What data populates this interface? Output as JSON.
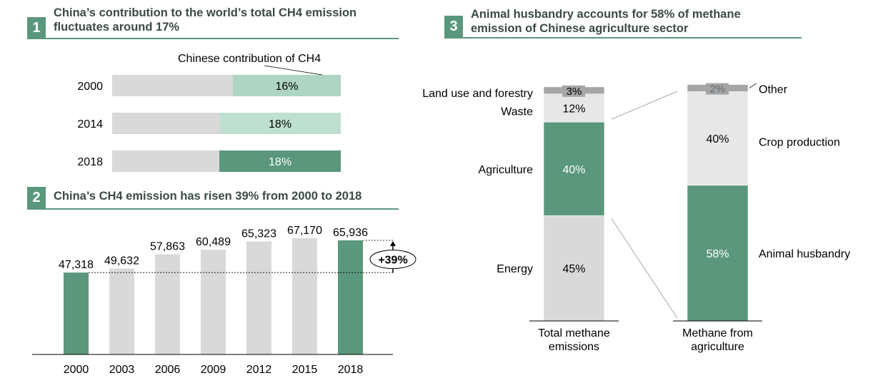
{
  "panels": [
    {
      "number": "1",
      "title_line1": "China’s contribution to the world’s total CH4 emission",
      "title_line2": "fluctuates around 17%"
    },
    {
      "number": "2",
      "title_line1": "China’s CH4 emission has risen 39% from 2000 to 2018"
    },
    {
      "number": "3",
      "title_line1": "Animal husbandry accounts for 58% of methane",
      "title_line2": "emission of Chinese agriculture sector"
    }
  ],
  "colors": {
    "accent": "#5a977c",
    "light_accent": "#aed5c3",
    "mid_accent": "#bfe0d1",
    "gray_bar": "#d9d9d9",
    "light_gray": "#e7e7e7",
    "dark_gray": "#a6a6a6",
    "title_text": "#3b4a45"
  },
  "chart_data": [
    {
      "type": "bar",
      "orientation": "horizontal",
      "legend_label": "Chinese contribution of CH4",
      "categories": [
        "2000",
        "2014",
        "2018"
      ],
      "values": [
        16,
        18,
        18
      ],
      "labels": [
        "16%",
        "18%",
        "18%"
      ],
      "value_unit": "%",
      "xlim": [
        0,
        100
      ]
    },
    {
      "type": "bar",
      "categories": [
        "2000",
        "2003",
        "2006",
        "2009",
        "2012",
        "2015",
        "2018"
      ],
      "values": [
        47318,
        49632,
        57863,
        60489,
        65323,
        67170,
        65936
      ],
      "labels": [
        "47,318",
        "49,632",
        "57,863",
        "60,489",
        "65,323",
        "67,170",
        "65,936"
      ],
      "highlighted": [
        "2000",
        "2018"
      ],
      "annotation": "+39%",
      "ylim": [
        0,
        67170
      ]
    },
    {
      "type": "bar",
      "stacked": true,
      "categories": [
        "Total methane emissions",
        "Methane from agriculture"
      ],
      "category_lines": [
        [
          "Total methane",
          "emissions"
        ],
        [
          "Methane from",
          "agriculture"
        ]
      ],
      "stacks": [
        [
          {
            "name": "Energy",
            "value": 45,
            "label": "45%"
          },
          {
            "name": "Agriculture",
            "value": 40,
            "label": "40%"
          },
          {
            "name": "Waste",
            "value": 12,
            "label": "12%"
          },
          {
            "name": "Land use and forestry",
            "value": 3,
            "label": "3%"
          }
        ],
        [
          {
            "name": "Animal husbandry",
            "value": 58,
            "label": "58%"
          },
          {
            "name": "Crop production",
            "value": 40,
            "label": "40%"
          },
          {
            "name": "Other",
            "value": 2,
            "label": "2%"
          }
        ]
      ]
    }
  ]
}
